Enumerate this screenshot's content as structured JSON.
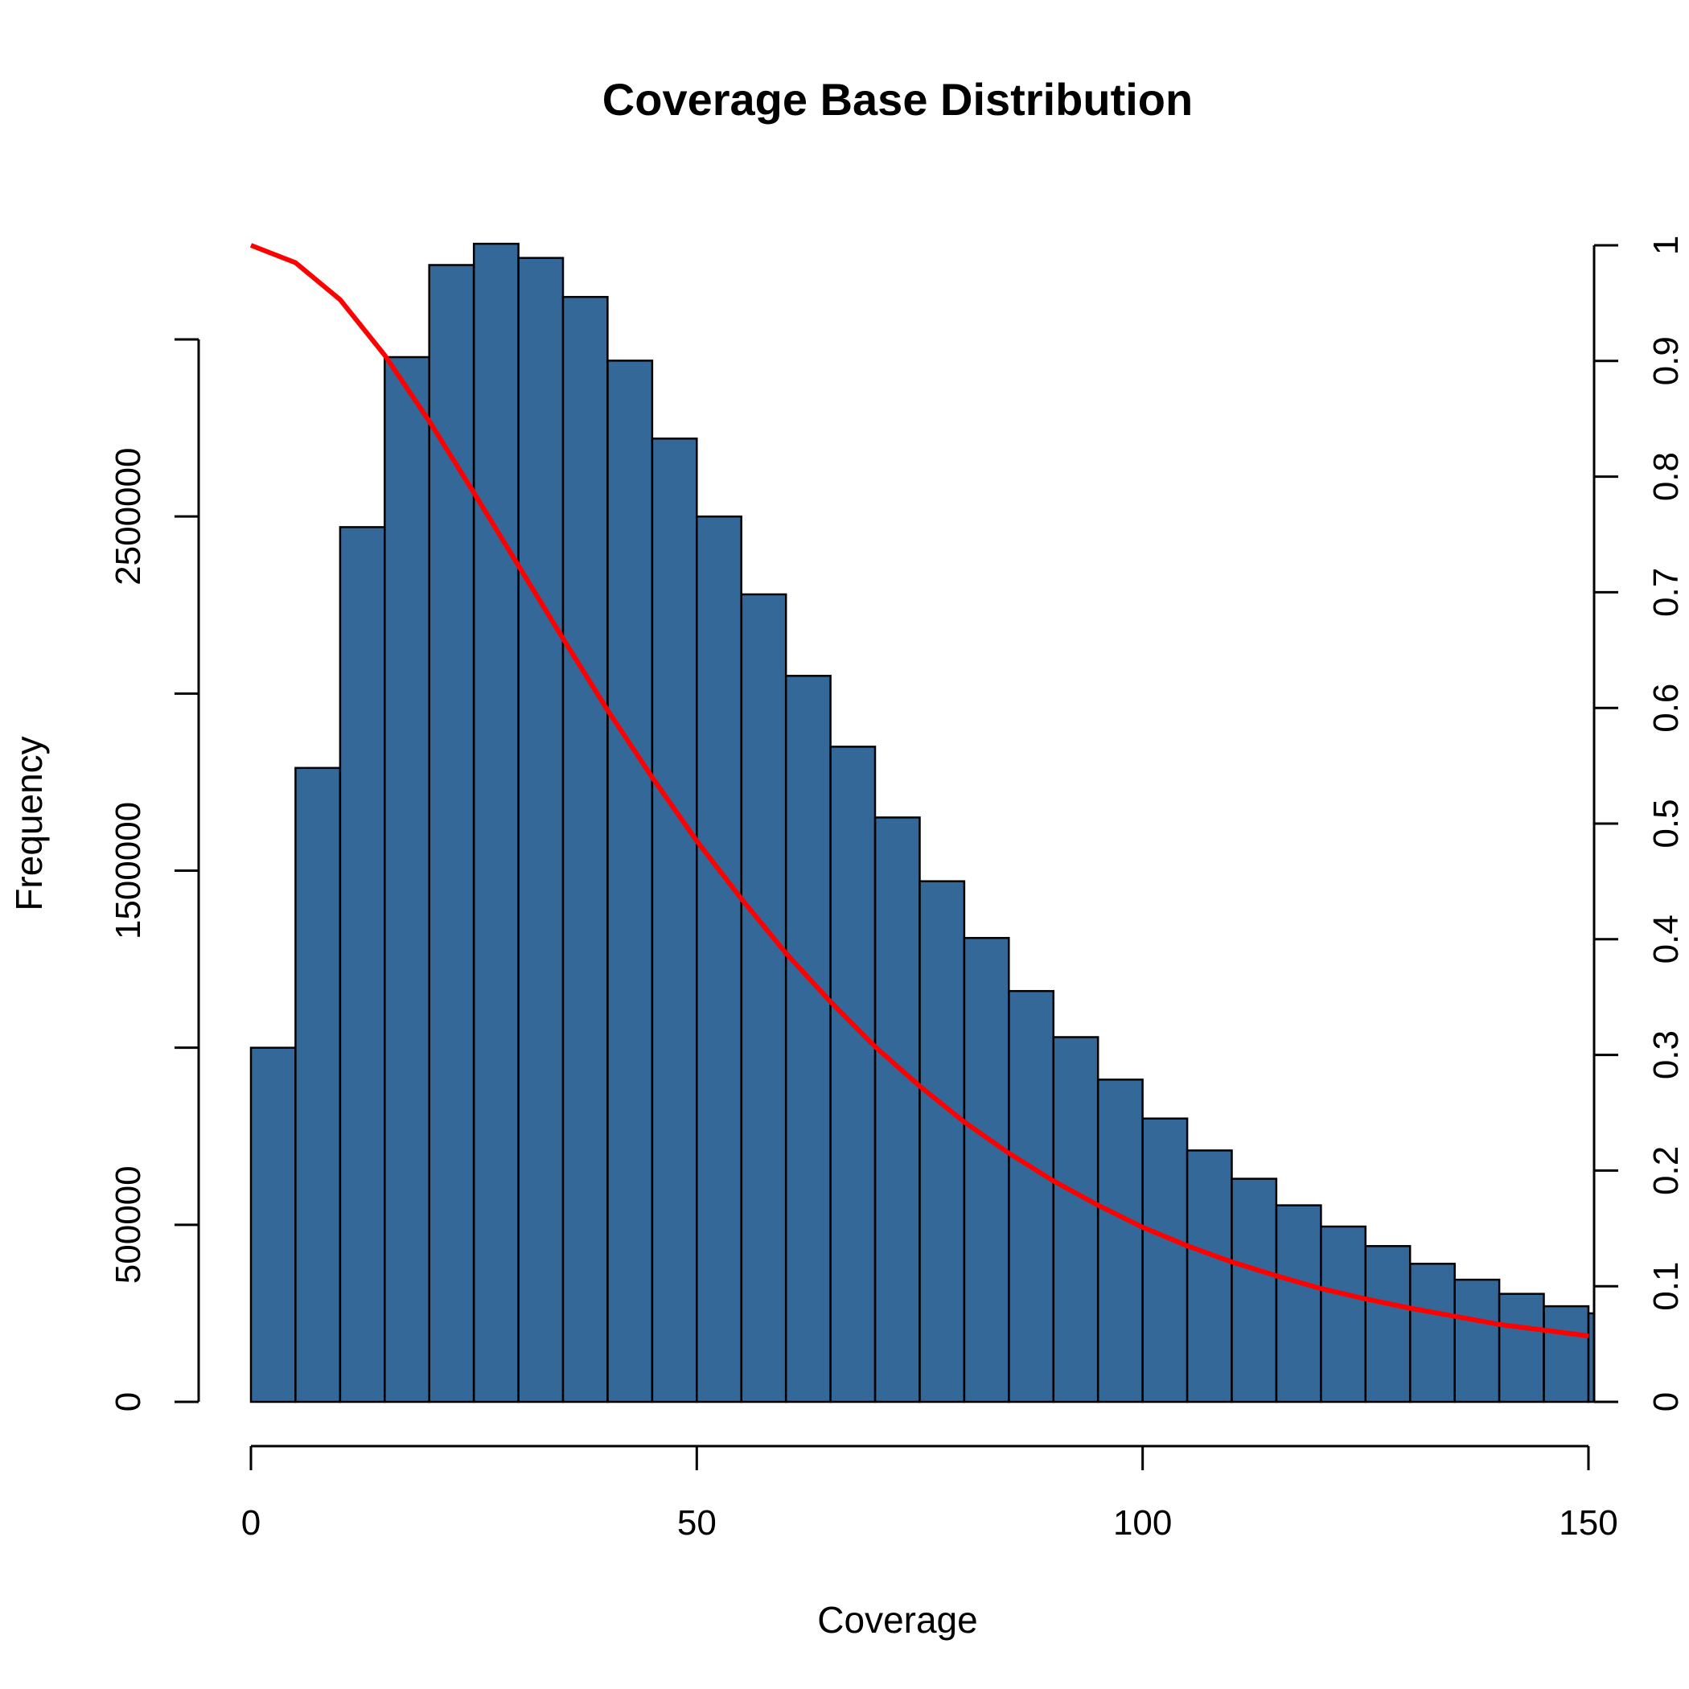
{
  "chart_data": {
    "type": "bar",
    "title": "Coverage Base Distribution",
    "xlabel": "Coverage",
    "ylabel": "Frequency",
    "xlim": [
      0,
      150
    ],
    "ylim_left": [
      0,
      3000000
    ],
    "ylim_right": [
      0,
      1
    ],
    "x_ticks": [
      0,
      50,
      100,
      150
    ],
    "y_left_ticks": [
      0,
      500000,
      1000000,
      1500000,
      2000000,
      2500000,
      3000000
    ],
    "y_left_tick_labels": [
      "0",
      "500000",
      "",
      "1500000",
      "",
      "2500000",
      ""
    ],
    "y_right_ticks": [
      0,
      0.1,
      0.2,
      0.3,
      0.4,
      0.5,
      0.6,
      0.7,
      0.8,
      0.9,
      1
    ],
    "y_right_tick_labels": [
      "0",
      "0.1",
      "0.2",
      "0.3",
      "0.4",
      "0.5",
      "0.6",
      "0.7",
      "0.8",
      "0.9",
      "1"
    ],
    "bin_width": 5,
    "bins_start": [
      0,
      5,
      10,
      15,
      20,
      25,
      30,
      35,
      40,
      45,
      50,
      55,
      60,
      65,
      70,
      75,
      80,
      85,
      90,
      95,
      100,
      105,
      110,
      115,
      120,
      125,
      130,
      135,
      140,
      145,
      150
    ],
    "values": [
      1000000,
      1790000,
      2470000,
      2950000,
      3210000,
      3270000,
      3230000,
      3120000,
      2940000,
      2720000,
      2500000,
      2280000,
      2050000,
      1850000,
      1650000,
      1470000,
      1310000,
      1160000,
      1030000,
      910000,
      800000,
      710000,
      630000,
      555000,
      495000,
      440000,
      390000,
      345000,
      305000,
      270000,
      250000
    ],
    "bar_color": "#346899",
    "series": [
      {
        "type": "line",
        "axis": "right",
        "color": "#ff0000",
        "x": [
          0,
          5,
          10,
          15,
          20,
          25,
          30,
          35,
          40,
          45,
          50,
          55,
          60,
          65,
          70,
          75,
          80,
          85,
          90,
          95,
          100,
          105,
          110,
          115,
          120,
          125,
          130,
          135,
          140,
          145,
          150
        ],
        "y": [
          1.0,
          0.985,
          0.953,
          0.905,
          0.848,
          0.786,
          0.723,
          0.66,
          0.598,
          0.54,
          0.485,
          0.435,
          0.388,
          0.346,
          0.307,
          0.273,
          0.242,
          0.215,
          0.191,
          0.17,
          0.151,
          0.135,
          0.121,
          0.109,
          0.098,
          0.089,
          0.081,
          0.074,
          0.067,
          0.062,
          0.057
        ]
      }
    ],
    "grid": false,
    "legend": "none"
  }
}
